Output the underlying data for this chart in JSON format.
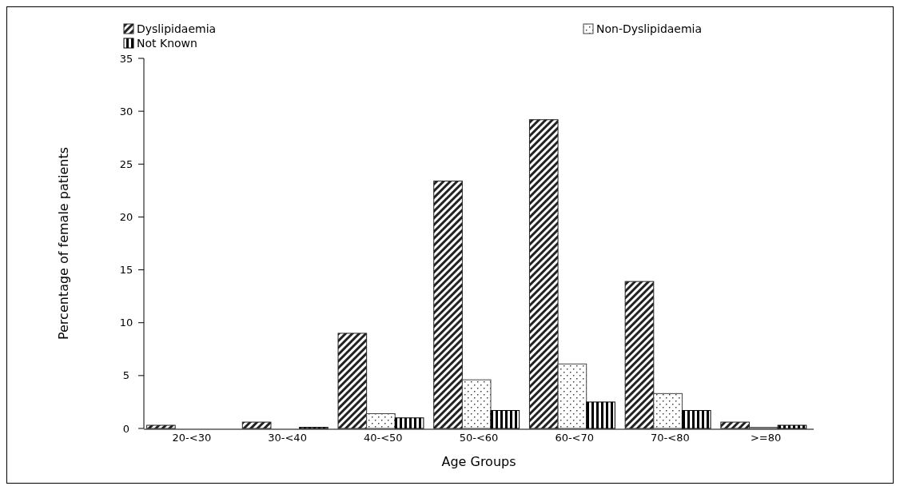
{
  "chart_data": {
    "type": "bar",
    "xlabel": "Age Groups",
    "ylabel": "Percentage of female patients",
    "categories": [
      "20-<30",
      "30-<40",
      "40-<50",
      "50-<60",
      "60-<70",
      "70-<80",
      ">=80"
    ],
    "series": [
      {
        "name": "Dyslipidaemia",
        "color": "#222222",
        "values": [
          0.3,
          0.6,
          9.0,
          23.4,
          29.2,
          13.9,
          0.6
        ]
      },
      {
        "name": "Non-Dyslipidaemia",
        "color": "#444444",
        "values": [
          0,
          0,
          1.4,
          4.6,
          6.1,
          3.3,
          0.1
        ]
      },
      {
        "name": "Not Known",
        "color": "#000000",
        "values": [
          0,
          0.1,
          1.0,
          1.7,
          2.5,
          1.7,
          0.3
        ]
      }
    ],
    "ylim": [
      0,
      35
    ],
    "yticks": [
      0,
      5,
      10,
      15,
      20,
      25,
      30,
      35
    ],
    "grid": false,
    "legend": "top"
  }
}
